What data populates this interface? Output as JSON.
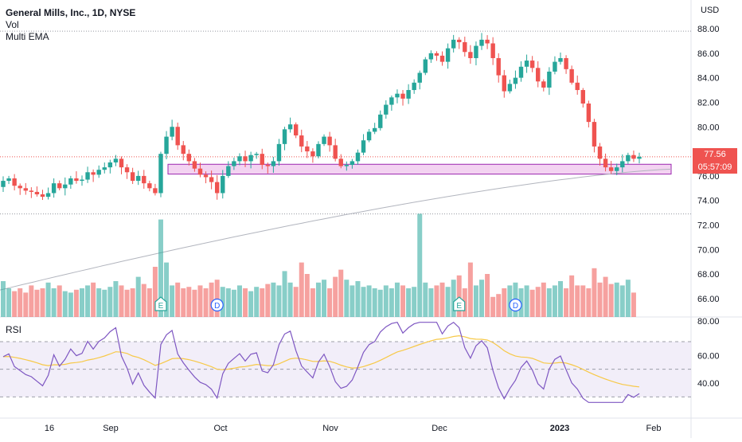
{
  "legend": {
    "title": "General Mills, Inc., 1D, NYSE",
    "line2": "Vol",
    "line3": "Multi EMA"
  },
  "price_axis": {
    "currency": "USD",
    "ticks": [
      "88.00",
      "86.00",
      "84.00",
      "82.00",
      "80.00",
      "78.00",
      "76.00",
      "74.00",
      "72.00",
      "70.00",
      "68.00",
      "66.00"
    ]
  },
  "rsi": {
    "title": "RSI",
    "ticks": [
      "80.00",
      "60.00",
      "40.00"
    ]
  },
  "last_price": {
    "value": "77.56",
    "countdown": "05:57:09"
  },
  "x_axis": {
    "labels": [
      "16",
      "Sep",
      "Oct",
      "Nov",
      "Dec",
      "2023",
      "Feb"
    ]
  },
  "colors": {
    "up": "#26a69a",
    "down": "#ef5350",
    "zone_fill": "#f3d3f1",
    "zone_border": "#9c27b0",
    "ma": "#b2b5be",
    "rsi_line": "#7e57c2",
    "rsi_ma": "#f7c948",
    "rsi_band": "#ede7f6"
  },
  "events": [
    {
      "type": "earnings",
      "label": "E",
      "date_index": 28
    },
    {
      "type": "dividend",
      "label": "D",
      "date_index": 38
    },
    {
      "type": "earnings",
      "label": "E",
      "date_index": 81
    },
    {
      "type": "dividend",
      "label": "D",
      "date_index": 91
    }
  ],
  "chart_data": {
    "type": "candlestick",
    "title": "General Mills, Inc., 1D, NYSE",
    "y_range": [
      72.5,
      88.5
    ],
    "support_zone": [
      76.15,
      76.95
    ],
    "rsi_range": [
      25,
      85
    ],
    "rsi_bands": [
      30,
      50,
      70
    ],
    "series_closes": [
      75.6,
      75.8,
      75.2,
      75.0,
      74.8,
      74.7,
      74.5,
      74.3,
      74.6,
      75.4,
      75.0,
      75.3,
      75.8,
      75.6,
      75.7,
      76.3,
      76.1,
      76.5,
      76.7,
      77.1,
      77.4,
      76.7,
      76.3,
      75.6,
      76.0,
      75.4,
      75.0,
      74.6,
      77.8,
      79.2,
      80.0,
      78.5,
      77.8,
      77.2,
      76.6,
      76.1,
      75.9,
      75.5,
      74.6,
      76.0,
      76.8,
      77.2,
      77.6,
      77.2,
      77.7,
      77.8,
      76.9,
      76.8,
      77.2,
      78.6,
      79.8,
      80.2,
      79.3,
      78.4,
      78.0,
      77.6,
      78.6,
      79.2,
      78.5,
      77.4,
      76.8,
      76.9,
      77.2,
      77.9,
      78.9,
      79.6,
      79.9,
      81.0,
      81.8,
      82.4,
      82.7,
      82.3,
      83.0,
      83.6,
      84.4,
      85.5,
      86.0,
      85.8,
      85.3,
      86.4,
      87.1,
      86.9,
      86.1,
      85.6,
      86.6,
      87.1,
      86.8,
      85.6,
      84.2,
      82.9,
      83.5,
      84.0,
      84.9,
      85.4,
      84.8,
      83.7,
      83.2,
      84.5,
      85.3,
      85.6,
      84.7,
      83.6,
      83.0,
      81.9,
      80.4,
      78.4,
      77.4,
      76.7,
      76.4,
      76.7,
      77.2,
      77.7,
      77.4,
      77.56
    ],
    "price_start": 75.1,
    "ma_series": [
      {
        "name": "Multi EMA",
        "start": 66.7,
        "end": 76.55
      }
    ],
    "volume": {
      "relative": [
        0.25,
        0.2,
        0.18,
        0.2,
        0.17,
        0.22,
        0.19,
        0.2,
        0.24,
        0.2,
        0.22,
        0.18,
        0.17,
        0.19,
        0.2,
        0.22,
        0.24,
        0.2,
        0.19,
        0.21,
        0.25,
        0.22,
        0.19,
        0.2,
        0.28,
        0.23,
        0.2,
        0.35,
        0.68,
        0.38,
        0.22,
        0.24,
        0.2,
        0.21,
        0.19,
        0.22,
        0.2,
        0.24,
        0.26,
        0.21,
        0.2,
        0.19,
        0.22,
        0.2,
        0.18,
        0.21,
        0.2,
        0.23,
        0.24,
        0.22,
        0.32,
        0.24,
        0.21,
        0.38,
        0.3,
        0.2,
        0.24,
        0.26,
        0.2,
        0.28,
        0.33,
        0.26,
        0.22,
        0.25,
        0.21,
        0.22,
        0.2,
        0.19,
        0.22,
        0.2,
        0.24,
        0.22,
        0.2,
        0.21,
        0.72,
        0.24,
        0.2,
        0.22,
        0.24,
        0.21,
        0.26,
        0.29,
        0.2,
        0.38,
        0.22,
        0.26,
        0.3,
        0.14,
        0.16,
        0.2,
        0.22,
        0.24,
        0.2,
        0.22,
        0.19,
        0.21,
        0.24,
        0.2,
        0.22,
        0.25,
        0.2,
        0.29,
        0.22,
        0.22,
        0.2,
        0.34,
        0.24,
        0.28,
        0.23,
        0.24,
        0.22,
        0.26,
        0.17
      ]
    }
  }
}
